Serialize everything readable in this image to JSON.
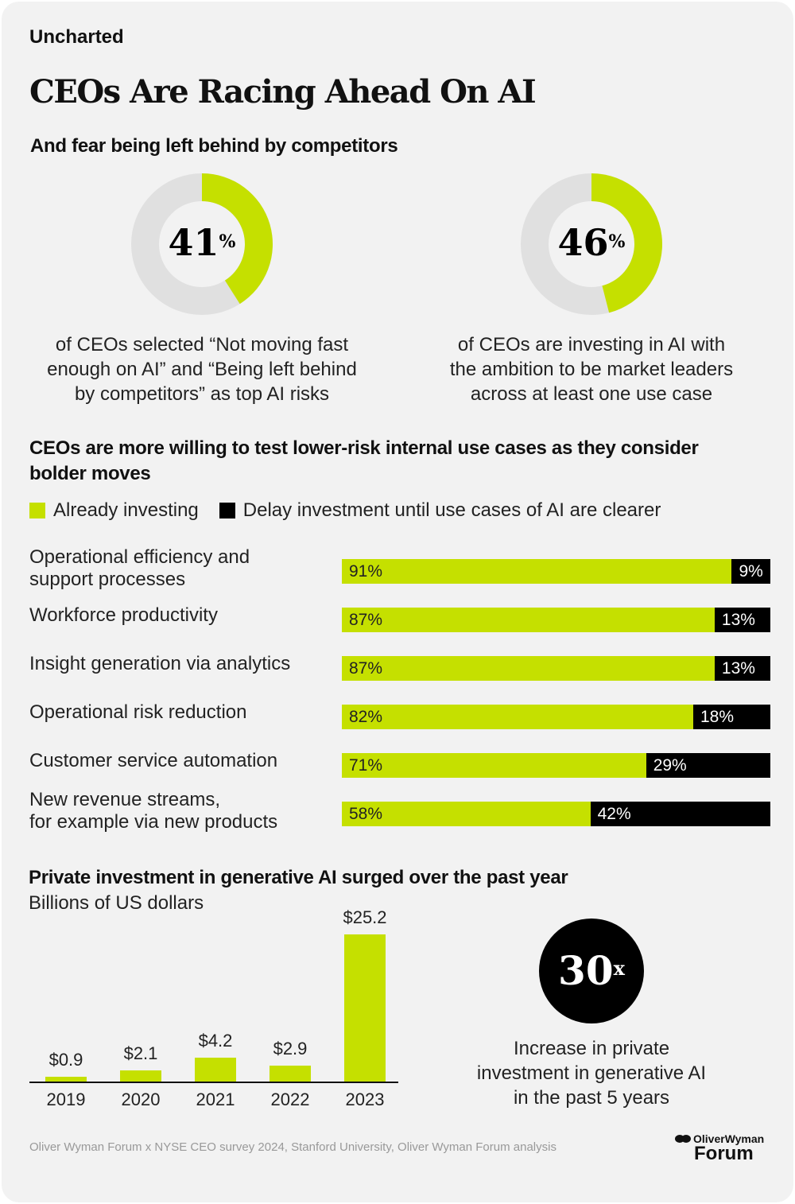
{
  "brand": "Uncharted",
  "title": "CEOs Are Racing Ahead On AI",
  "colors": {
    "accent": "#c5e000",
    "track": "#e0e0e0",
    "dark": "#000000",
    "background": "#f2f2f2"
  },
  "donuts": {
    "subtitle": "And fear being left behind by competitors",
    "items": [
      {
        "value": 41,
        "label": "41",
        "unit": "%",
        "caption": [
          "of CEOs selected “Not moving fast",
          "enough on AI” and “Being left behind",
          "by competitors” as top AI risks"
        ]
      },
      {
        "value": 46,
        "label": "46",
        "unit": "%",
        "caption": [
          "of CEOs are investing in AI with",
          "the ambition to be market leaders",
          "across at least one use case"
        ]
      }
    ]
  },
  "chart_data": [
    {
      "type": "bar",
      "orientation": "horizontal",
      "stacked": true,
      "title": "CEOs are more willing to test lower-risk internal use cases as they consider bolder moves",
      "categories": [
        [
          "Operational efficiency and",
          "support processes"
        ],
        [
          "Workforce productivity"
        ],
        [
          "Insight generation via analytics"
        ],
        [
          "Operational risk reduction"
        ],
        [
          "Customer service automation"
        ],
        [
          "New revenue streams,",
          "for example via new products"
        ]
      ],
      "series": [
        {
          "name": "Already investing",
          "color": "#c5e000",
          "values": [
            91,
            87,
            87,
            82,
            71,
            58
          ]
        },
        {
          "name": "Delay investment until use cases of AI are clearer",
          "color": "#000000",
          "values": [
            9,
            13,
            13,
            18,
            29,
            42
          ]
        }
      ],
      "xlim": [
        0,
        100
      ],
      "legend": "top"
    },
    {
      "type": "bar",
      "title": "Private investment in generative AI surged over the past year",
      "ylabel": "Billions of US dollars",
      "categories": [
        "2019",
        "2020",
        "2021",
        "2022",
        "2023"
      ],
      "values": [
        0.9,
        2.1,
        4.2,
        2.9,
        25.2
      ],
      "labels": [
        "$0.9",
        "$2.1",
        "$4.2",
        "$2.9",
        "$25.2"
      ],
      "color": "#c5e000",
      "ylim": [
        0,
        25.2
      ]
    }
  ],
  "callout": {
    "value": "30",
    "unit": "x",
    "caption": [
      "Increase in private",
      "investment in generative AI",
      "in the past 5 years"
    ]
  },
  "source": "Oliver Wyman Forum x NYSE CEO survey 2024, Stanford University, Oliver Wyman Forum analysis",
  "logo": {
    "line1": "OliverWyman",
    "line2": "Forum"
  }
}
